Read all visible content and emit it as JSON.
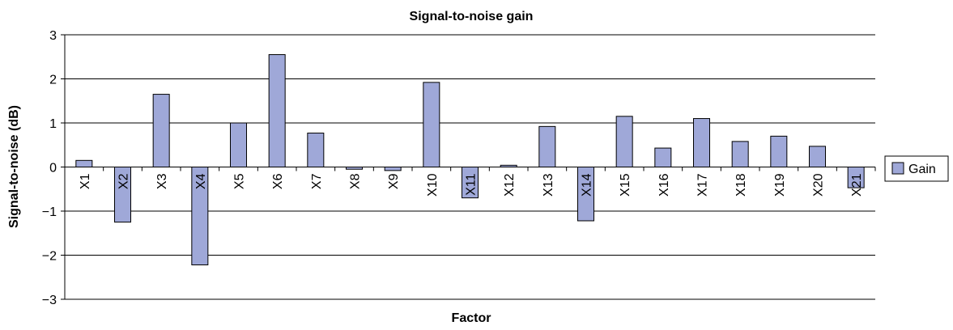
{
  "chart_data": {
    "type": "bar",
    "title": "Signal-to-noise gain",
    "xlabel": "Factor",
    "ylabel": "Signal-to-noise (dB)",
    "ylim": [
      -3,
      3
    ],
    "yticks": [
      -3,
      -2,
      -1,
      0,
      1,
      2,
      3
    ],
    "ytick_labels": [
      "−3",
      "−2",
      "−1",
      "0",
      "1",
      "2",
      "3"
    ],
    "grid": true,
    "legend": "right",
    "colors": {
      "bar_fill": "#9fa8d8",
      "bar_stroke": "#000000",
      "grid": "#000000"
    },
    "categories": [
      "X1",
      "X2",
      "X3",
      "X4",
      "X5",
      "X6",
      "X7",
      "X8",
      "X9",
      "X10",
      "X11",
      "X12",
      "X13",
      "X14",
      "X15",
      "X16",
      "X17",
      "X18",
      "X19",
      "X20",
      "X21"
    ],
    "series": [
      {
        "name": "Gain",
        "values": [
          0.15,
          -1.25,
          1.65,
          -2.22,
          1.0,
          2.55,
          0.77,
          -0.05,
          -0.08,
          1.92,
          -0.7,
          0.04,
          0.92,
          -1.22,
          1.15,
          0.43,
          1.1,
          0.58,
          0.7,
          0.47,
          -0.47
        ]
      }
    ]
  }
}
